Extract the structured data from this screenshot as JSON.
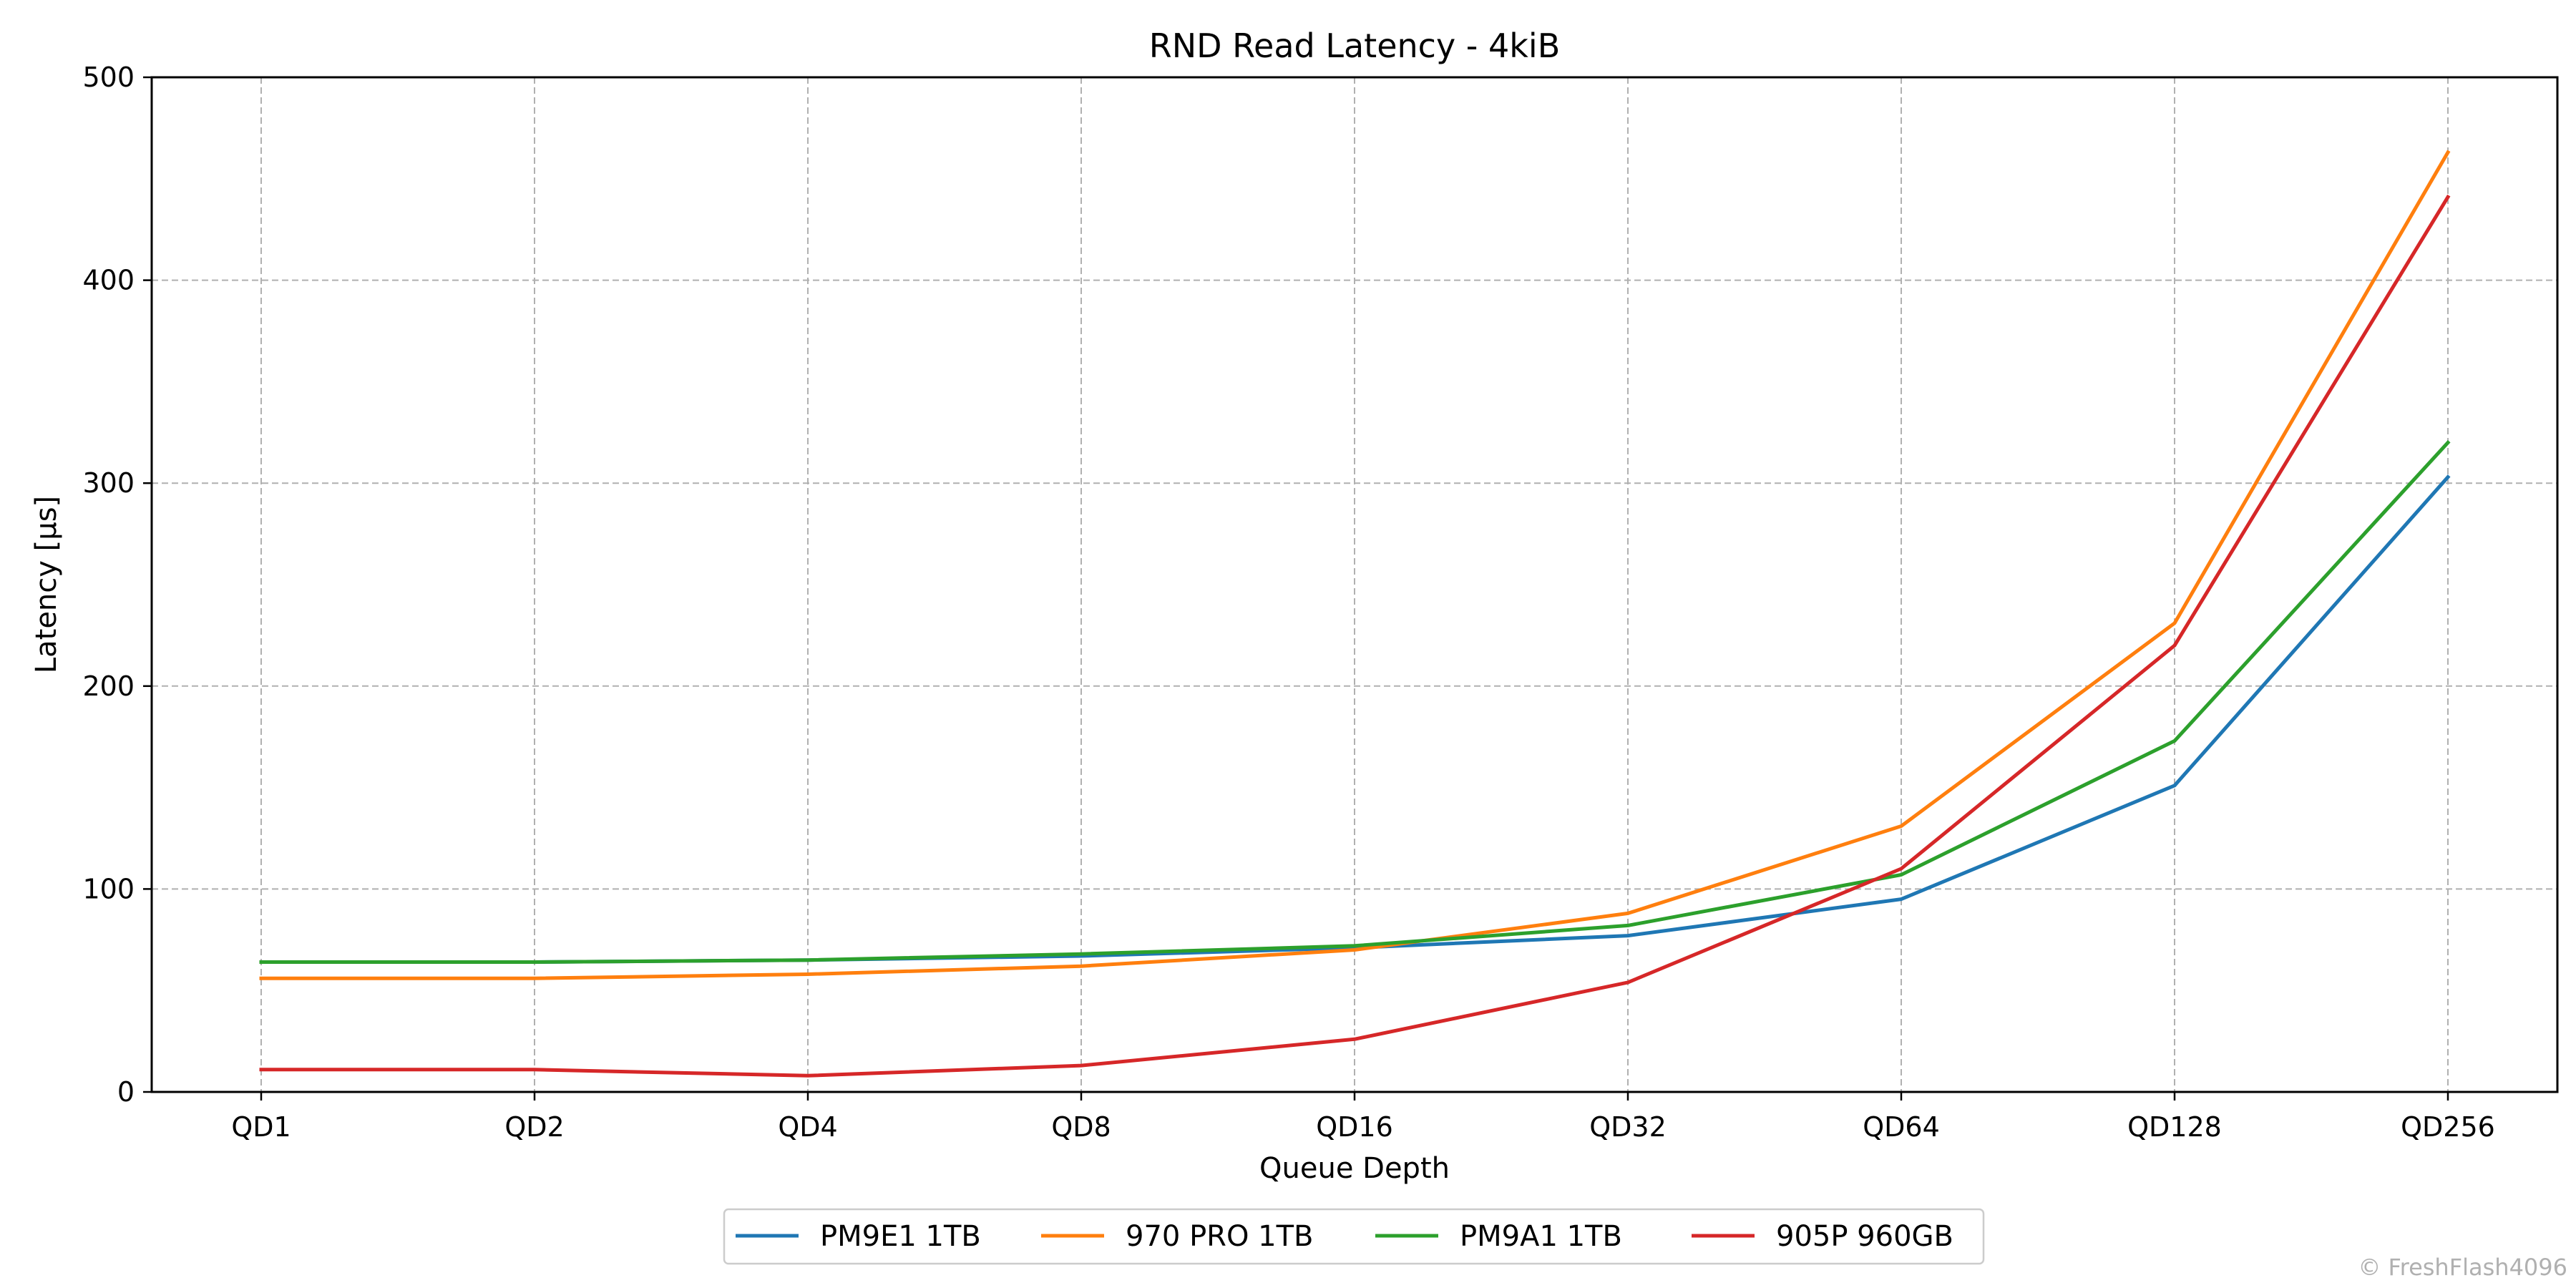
{
  "chart_data": {
    "type": "line",
    "title": "RND Read Latency - 4kiB",
    "xlabel": "Queue Depth",
    "ylabel": "Latency [µs]",
    "categories": [
      "QD1",
      "QD2",
      "QD4",
      "QD8",
      "QD16",
      "QD32",
      "QD64",
      "QD128",
      "QD256"
    ],
    "ylim": [
      0,
      500
    ],
    "yticks": [
      "0",
      "100",
      "200",
      "300",
      "400",
      "500"
    ],
    "grid": true,
    "legend_placement": "bottom-center",
    "series": [
      {
        "name": "PM9E1 1TB",
        "color": "#1f77b4",
        "values": [
          64,
          64,
          65,
          67,
          71,
          77,
          95,
          151,
          303
        ]
      },
      {
        "name": "970 PRO 1TB",
        "color": "#ff7f0e",
        "values": [
          56,
          56,
          58,
          62,
          70,
          88,
          131,
          231,
          463
        ]
      },
      {
        "name": "PM9A1 1TB",
        "color": "#2ca02c",
        "values": [
          64,
          64,
          65,
          68,
          72,
          82,
          107,
          173,
          320
        ]
      },
      {
        "name": "905P 960GB",
        "color": "#d62728",
        "values": [
          11,
          11,
          8,
          13,
          26,
          54,
          110,
          220,
          441
        ]
      }
    ]
  },
  "copyright": "© FreshFlash4096"
}
